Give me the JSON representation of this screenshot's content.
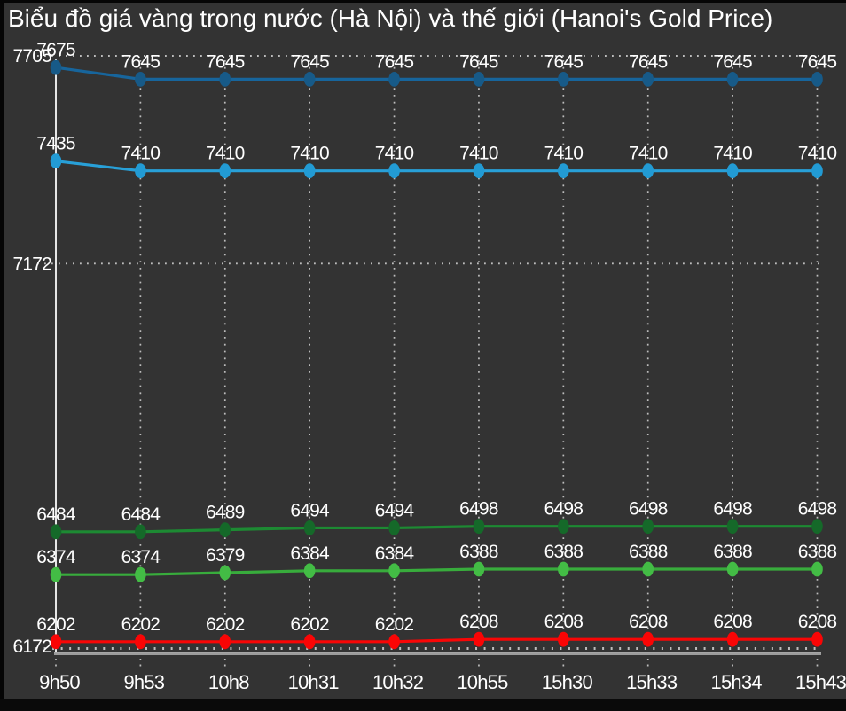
{
  "title": "Biểu đồ giá vàng trong nước (Hà Nội) và thế giới (Hanoi's Gold Price)",
  "colors": {
    "background": "#333333",
    "text": "#ffffff",
    "grid_dots": "#bdbdbd",
    "y_axis_line": "#e6e6e6",
    "x_axis_bar": "#9c9c9c",
    "x_axis_bar_highlight": "#cccccc",
    "bottom_strip": "#0a0a0a"
  },
  "chart_data": {
    "type": "line",
    "title": "Biểu đồ giá vàng trong nước (Hà Nội) và thế giới (Hanoi's Gold Price)",
    "x": [
      "9h50",
      "9h53",
      "10h8",
      "10h31",
      "10h32",
      "10h55",
      "15h30",
      "15h33",
      "15h34",
      "15h43"
    ],
    "xlabel": "",
    "ylabel": "",
    "ylim": [
      6172,
      7705
    ],
    "y_ticks": [
      7705,
      7172,
      6172
    ],
    "grid": "dotted horizontal gridlines at 7705 and 7172; dotted vertical gridline at every x position",
    "legend_position": "none",
    "point_labels": true,
    "series": [
      {
        "name": "series-dark-blue",
        "color": "#17659C",
        "marker_color": "#175A88",
        "values": [
          7675,
          7645,
          7645,
          7645,
          7645,
          7645,
          7645,
          7645,
          7645,
          7645
        ]
      },
      {
        "name": "series-light-blue",
        "color": "#28A0D8",
        "marker_color": "#229BD4",
        "values": [
          7435,
          7410,
          7410,
          7410,
          7410,
          7410,
          7410,
          7410,
          7410,
          7410
        ]
      },
      {
        "name": "series-dark-green",
        "color": "#1D8A33",
        "marker_color": "#156929",
        "values": [
          6484,
          6484,
          6489,
          6494,
          6494,
          6498,
          6498,
          6498,
          6498,
          6498
        ]
      },
      {
        "name": "series-light-green",
        "color": "#38AC3C",
        "marker_color": "#43BC45",
        "values": [
          6374,
          6374,
          6379,
          6384,
          6384,
          6388,
          6388,
          6388,
          6388,
          6388
        ]
      },
      {
        "name": "series-red",
        "color": "#F90606",
        "marker_color": "#FA0505",
        "values": [
          6202,
          6202,
          6202,
          6202,
          6202,
          6208,
          6208,
          6208,
          6208,
          6208
        ]
      }
    ]
  }
}
